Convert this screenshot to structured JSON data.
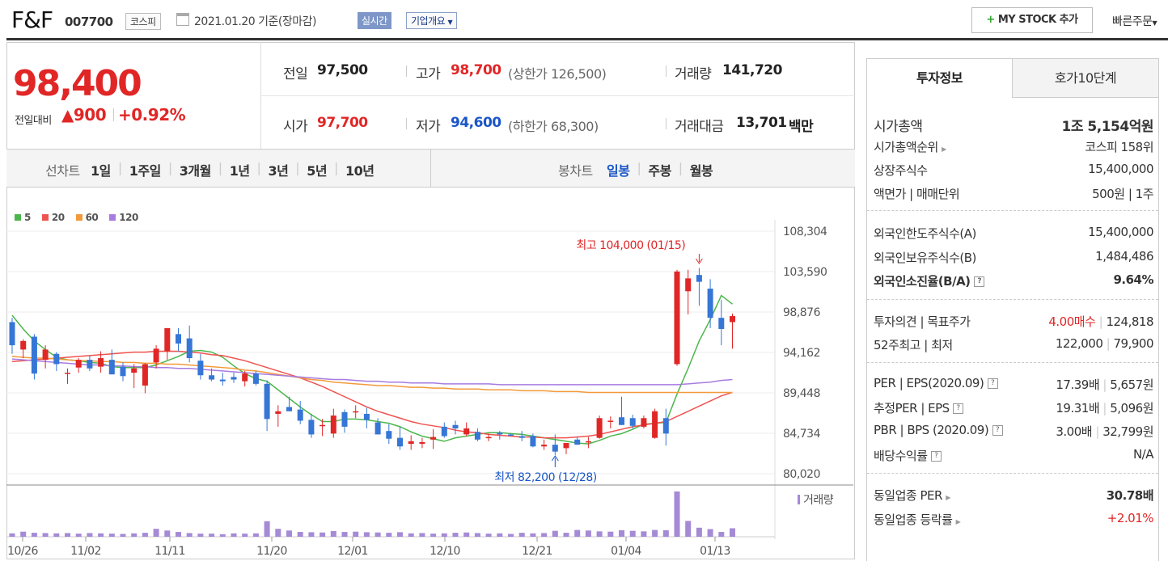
{
  "header": {
    "name": "F&F",
    "code": "007700",
    "market": "코스피",
    "date": "2021.01.20 기준(장마감)",
    "realtime": "실시간",
    "company_info": "기업개요",
    "mystock": "MY STOCK 추가",
    "quick_order": "빠른주문"
  },
  "price": {
    "current": "98,400",
    "change_label": "전일대비",
    "change": "900",
    "change_pct": "+0.92%"
  },
  "summary": {
    "prev_label": "전일",
    "prev": "97,500",
    "high_label": "고가",
    "high": "98,700",
    "upper_limit": "(상한가 126,500)",
    "volume_label": "거래량",
    "volume": "141,720",
    "open_label": "시가",
    "open": "97,700",
    "low_label": "저가",
    "low": "94,600",
    "lower_limit": "(하한가 68,300)",
    "amount_label": "거래대금",
    "amount": "13,701",
    "amount_unit": "백만"
  },
  "periods": {
    "label": "선차트",
    "items": [
      "1일",
      "1주일",
      "3개월",
      "1년",
      "3년",
      "5년",
      "10년"
    ]
  },
  "candles": {
    "label": "봉차트",
    "items": [
      "일봉",
      "주봉",
      "월봉"
    ],
    "active": "일봉"
  },
  "legend": [
    {
      "label": "5",
      "color": "#4cb64c"
    },
    {
      "label": "20",
      "color": "#ef5350"
    },
    {
      "label": "60",
      "color": "#f39a3b"
    },
    {
      "label": "120",
      "color": "#a77be0"
    }
  ],
  "annotations": {
    "high": "최고 104,000 (01/15)",
    "low": "최저 82,200 (12/28)"
  },
  "volume_label": "거래량",
  "chart_data": {
    "type": "candlestick",
    "y_ticks": [
      "108,304",
      "103,590",
      "98,876",
      "94,162",
      "89,448",
      "84,734",
      "80,020"
    ],
    "x_ticks": [
      "10/26",
      "11/02",
      "11/11",
      "11/20",
      "12/01",
      "12/10",
      "12/21",
      "01/04",
      "01/13"
    ],
    "ylim": [
      80020,
      108304
    ],
    "ohlc": [
      [
        97700,
        98200,
        94000,
        95000
      ],
      [
        94500,
        95700,
        93500,
        95500
      ],
      [
        96000,
        96300,
        91000,
        91700
      ],
      [
        93300,
        95000,
        92300,
        94500
      ],
      [
        94000,
        94200,
        92000,
        92800
      ],
      [
        91700,
        92300,
        90500,
        91800
      ],
      [
        92400,
        93500,
        91800,
        93300
      ],
      [
        93300,
        93800,
        92000,
        92300
      ],
      [
        92500,
        94300,
        91800,
        93500
      ],
      [
        93300,
        94500,
        91800,
        91600
      ],
      [
        92500,
        93000,
        90800,
        91400
      ],
      [
        91800,
        92800,
        90000,
        92300
      ],
      [
        90300,
        92900,
        89400,
        92800
      ],
      [
        93000,
        95000,
        92300,
        94600
      ],
      [
        94300,
        97000,
        93300,
        97000
      ],
      [
        96300,
        97000,
        94300,
        95200
      ],
      [
        95800,
        97300,
        93000,
        93500
      ],
      [
        93200,
        94000,
        91000,
        91500
      ],
      [
        91500,
        92300,
        90800,
        91000
      ],
      [
        91000,
        91800,
        90300,
        90800
      ],
      [
        91300,
        91800,
        90600,
        91000
      ],
      [
        90800,
        92000,
        90200,
        91700
      ],
      [
        91700,
        92000,
        90300,
        90500
      ],
      [
        90500,
        90900,
        85000,
        86400
      ],
      [
        87000,
        88000,
        85500,
        87300
      ],
      [
        87800,
        89000,
        87300,
        87300
      ],
      [
        87500,
        88500,
        85800,
        86200
      ],
      [
        86300,
        87000,
        84200,
        84600
      ],
      [
        85600,
        86400,
        84400,
        85700
      ],
      [
        84700,
        87600,
        84200,
        86800
      ],
      [
        87200,
        87500,
        84800,
        85500
      ],
      [
        87300,
        88000,
        86500,
        87300
      ],
      [
        87000,
        87700,
        85300,
        86300
      ],
      [
        86000,
        86500,
        84600,
        84600
      ],
      [
        85000,
        85800,
        83500,
        84100
      ],
      [
        84200,
        85500,
        82800,
        83200
      ],
      [
        83500,
        84500,
        82800,
        83800
      ],
      [
        83500,
        84200,
        83000,
        83700
      ],
      [
        84000,
        85200,
        82900,
        84300
      ],
      [
        85500,
        86000,
        84200,
        84400
      ],
      [
        85700,
        86200,
        84600,
        85300
      ],
      [
        84600,
        86000,
        84400,
        85300
      ],
      [
        84900,
        85300,
        83800,
        84000
      ],
      [
        84300,
        84700,
        83800,
        84300
      ],
      [
        84800,
        85000,
        84000,
        84600
      ],
      [
        84600,
        84700,
        84400,
        84500
      ],
      [
        84400,
        85000,
        83800,
        84200
      ],
      [
        84400,
        84700,
        83100,
        83200
      ],
      [
        83200,
        84000,
        82800,
        83400
      ],
      [
        83400,
        84600,
        82200,
        82600
      ],
      [
        83000,
        83600,
        82300,
        83600
      ],
      [
        84000,
        84300,
        83400,
        83400
      ],
      [
        83800,
        84300,
        83000,
        83800
      ],
      [
        84200,
        86800,
        84100,
        86500
      ],
      [
        86100,
        86700,
        85300,
        86200
      ],
      [
        86600,
        89000,
        85700,
        85700
      ],
      [
        86500,
        86900,
        85300,
        85600
      ],
      [
        85500,
        86800,
        85300,
        86500
      ],
      [
        84200,
        87600,
        84100,
        87300
      ],
      [
        86500,
        87600,
        83300,
        84700
      ],
      [
        92800,
        103800,
        92600,
        103600
      ],
      [
        101300,
        103800,
        98600,
        102800
      ],
      [
        103200,
        104000,
        99600,
        102400
      ],
      [
        101600,
        102700,
        97000,
        98200
      ],
      [
        98200,
        100300,
        95000,
        96900
      ],
      [
        97700,
        98700,
        94600,
        98400
      ]
    ],
    "volume": [
      12,
      18,
      14,
      13,
      12,
      13,
      11,
      13,
      12,
      11,
      10,
      12,
      14,
      28,
      22,
      17,
      13,
      11,
      11,
      9,
      12,
      11,
      12,
      55,
      28,
      22,
      17,
      16,
      15,
      20,
      17,
      18,
      16,
      15,
      14,
      16,
      12,
      13,
      11,
      12,
      14,
      15,
      13,
      11,
      12,
      10,
      14,
      12,
      13,
      21,
      14,
      24,
      22,
      19,
      18,
      23,
      21,
      19,
      24,
      23,
      160,
      56,
      32,
      27,
      17,
      30
    ],
    "ma": [
      {
        "name": "5",
        "color": "#4cb64c",
        "values": [
          98500,
          96900,
          95500,
          94500,
          93600,
          93300,
          93200,
          93000,
          92900,
          92500,
          92400,
          92400,
          92400,
          92700,
          93200,
          93700,
          94300,
          94400,
          94200,
          93600,
          92600,
          91700,
          91100,
          90800,
          89800,
          88800,
          87800,
          86900,
          86100,
          86100,
          86400,
          86400,
          86300,
          86100,
          85900,
          85500,
          84900,
          84400,
          84100,
          83800,
          84200,
          84400,
          84600,
          84800,
          84800,
          84700,
          84600,
          84400,
          84200,
          84000,
          83800,
          83600,
          83500,
          83900,
          84400,
          84700,
          85200,
          85800,
          85900,
          86000,
          89300,
          92300,
          95500,
          98000,
          100800,
          99800
        ]
      },
      {
        "name": "20",
        "color": "#ef5350",
        "values": [
          93100,
          93200,
          93300,
          93400,
          93500,
          93600,
          93700,
          93800,
          93900,
          94000,
          94100,
          94200,
          94200,
          94300,
          94300,
          94300,
          94200,
          94100,
          93900,
          93800,
          93500,
          93200,
          92800,
          92400,
          92000,
          91600,
          91200,
          90700,
          90200,
          89600,
          89000,
          88400,
          87800,
          87300,
          86900,
          86500,
          86100,
          85800,
          85600,
          85400,
          85100,
          84900,
          84800,
          84600,
          84500,
          84400,
          84300,
          84300,
          84200,
          84200,
          84200,
          84300,
          84400,
          84600,
          84900,
          85200,
          85500,
          85700,
          85900,
          86100,
          86700,
          87300,
          87900,
          88500,
          89100,
          89500
        ]
      },
      {
        "name": "60",
        "color": "#f39a3b",
        "values": [
          93700,
          93600,
          93500,
          93500,
          93400,
          93300,
          93200,
          93200,
          93100,
          93100,
          93000,
          93000,
          92900,
          92900,
          92800,
          92800,
          92700,
          92600,
          92500,
          92400,
          92300,
          92100,
          92000,
          91800,
          91600,
          91400,
          91200,
          91000,
          90900,
          90700,
          90600,
          90500,
          90400,
          90300,
          90300,
          90200,
          90100,
          90100,
          90000,
          90000,
          89900,
          89900,
          89900,
          89800,
          89800,
          89800,
          89700,
          89700,
          89700,
          89600,
          89600,
          89600,
          89500,
          89500,
          89500,
          89500,
          89500,
          89500,
          89500,
          89500,
          89500,
          89500,
          89500,
          89500,
          89500,
          89500
        ]
      },
      {
        "name": "120",
        "color": "#a77be0",
        "values": [
          93400,
          93300,
          93200,
          93100,
          93000,
          92900,
          92800,
          92700,
          92700,
          92600,
          92600,
          92500,
          92500,
          92400,
          92400,
          92300,
          92300,
          92200,
          92100,
          92000,
          91900,
          91800,
          91700,
          91600,
          91500,
          91400,
          91300,
          91200,
          91100,
          91000,
          91000,
          90900,
          90800,
          90800,
          90700,
          90700,
          90600,
          90600,
          90600,
          90500,
          90500,
          90500,
          90500,
          90500,
          90400,
          90400,
          90400,
          90400,
          90400,
          90400,
          90400,
          90400,
          90400,
          90400,
          90400,
          90400,
          90400,
          90400,
          90400,
          90400,
          90400,
          90500,
          90600,
          90700,
          90900,
          91000
        ]
      }
    ]
  },
  "invest": {
    "tab1": "투자정보",
    "tab2": "호가10단계",
    "g1": [
      [
        "시가총액",
        "1조 5,154억원"
      ],
      [
        "시가총액순위",
        "코스피 158위"
      ],
      [
        "상장주식수",
        "15,400,000"
      ],
      [
        "액면가 | 매매단위",
        "500원 | 1주"
      ]
    ],
    "g2": [
      [
        "외국인한도주식수(A)",
        "15,400,000"
      ],
      [
        "외국인보유주식수(B)",
        "1,484,486"
      ],
      [
        "외국인소진율(B/A)",
        "9.64%"
      ]
    ],
    "g3": [
      [
        "투자의견 | 목표주가",
        "4.00매수",
        "124,818"
      ],
      [
        "52주최고 | 최저",
        "122,000",
        "79,900"
      ]
    ],
    "g4": [
      [
        "PER | EPS(2020.09)",
        "17.39배",
        "5,657원"
      ],
      [
        "추정PER | EPS",
        "19.31배",
        "5,096원"
      ],
      [
        "PBR | BPS (2020.09)",
        "3.00배",
        "32,799원"
      ],
      [
        "배당수익률",
        "N/A"
      ]
    ],
    "g5": [
      [
        "동일업종 PER",
        "30.78배"
      ],
      [
        "동일업종 등락률",
        "+2.01%"
      ]
    ]
  }
}
